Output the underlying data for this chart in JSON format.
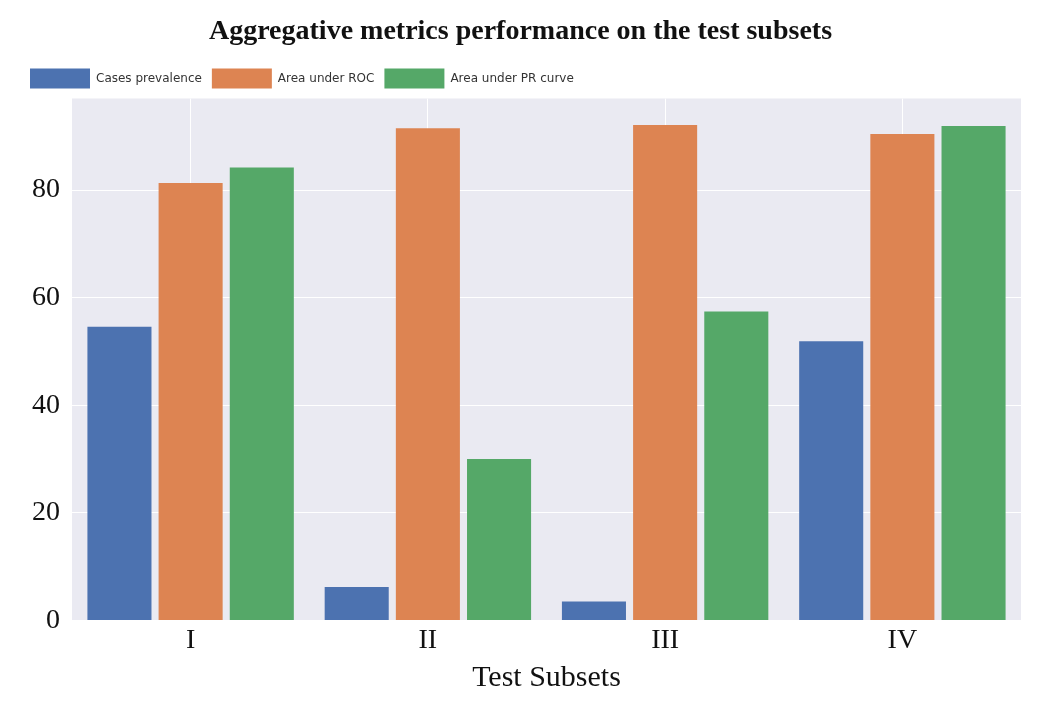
{
  "chart_data": {
    "type": "bar",
    "title": "Aggregative metrics performance on the test subsets",
    "xlabel": "Test Subsets",
    "categories": [
      "I",
      "II",
      "III",
      "IV"
    ],
    "series": [
      {
        "name": "Cases prevalence",
        "color": "#4c72b0",
        "values": [
          54.6,
          6.2,
          3.5,
          51.9
        ]
      },
      {
        "name": "Area under ROC",
        "color": "#dd8452",
        "values": [
          81.3,
          91.5,
          92.1,
          90.4
        ]
      },
      {
        "name": "Area under PR curve",
        "color": "#55a868",
        "values": [
          84.2,
          30.0,
          57.4,
          91.9
        ]
      }
    ],
    "ylim": [
      0,
      97
    ],
    "yticks": [
      0,
      20,
      40,
      60,
      80
    ],
    "grid": true,
    "legend": "top left"
  }
}
